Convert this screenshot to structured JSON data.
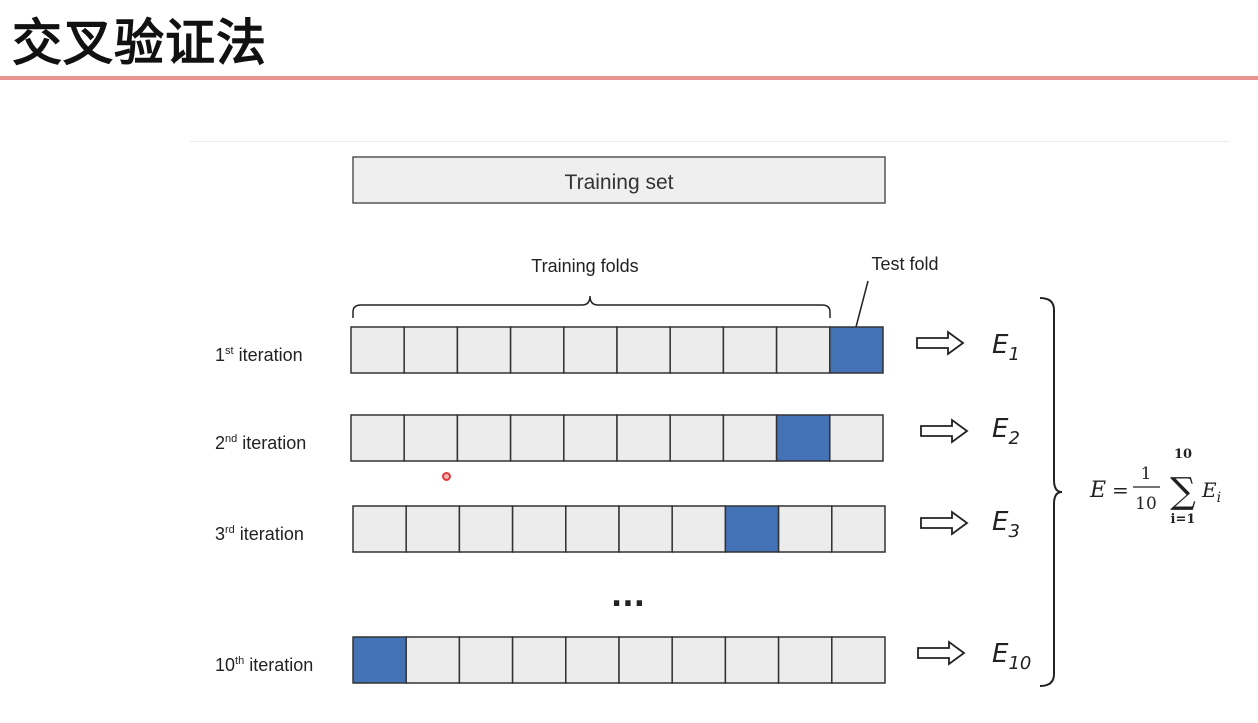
{
  "slide": {
    "title": "交叉验证法"
  },
  "diagram": {
    "training_set_label": "Training set",
    "training_folds_label": "Training folds",
    "test_fold_label": "Test fold",
    "fold_count": 10,
    "gap_marker": "...",
    "iterations": [
      {
        "num": "1",
        "sup": "st",
        "rest": " iteration",
        "test_fold_index": 9,
        "error_symbol": "E",
        "error_subscript": "1"
      },
      {
        "num": "2",
        "sup": "nd",
        "rest": " iteration",
        "test_fold_index": 8,
        "error_symbol": "E",
        "error_subscript": "2"
      },
      {
        "num": "3",
        "sup": "rd",
        "rest": " iteration",
        "test_fold_index": 7,
        "error_symbol": "E",
        "error_subscript": "3"
      },
      {
        "num": "10",
        "sup": "th",
        "rest": " iteration",
        "test_fold_index": 0,
        "error_symbol": "E",
        "error_subscript": "10"
      }
    ],
    "formula": {
      "lhs": "E",
      "equals": "=",
      "frac_num": "1",
      "frac_den": "10",
      "sum_symbol": "∑",
      "sum_upper": "10",
      "sum_lower": "i=1",
      "term_symbol": "E",
      "term_subscript": "i"
    },
    "colors": {
      "test_fold": "#4472b6",
      "train_fold": "#ececec",
      "border": "#333333",
      "title_rule": "#e8958f"
    }
  }
}
